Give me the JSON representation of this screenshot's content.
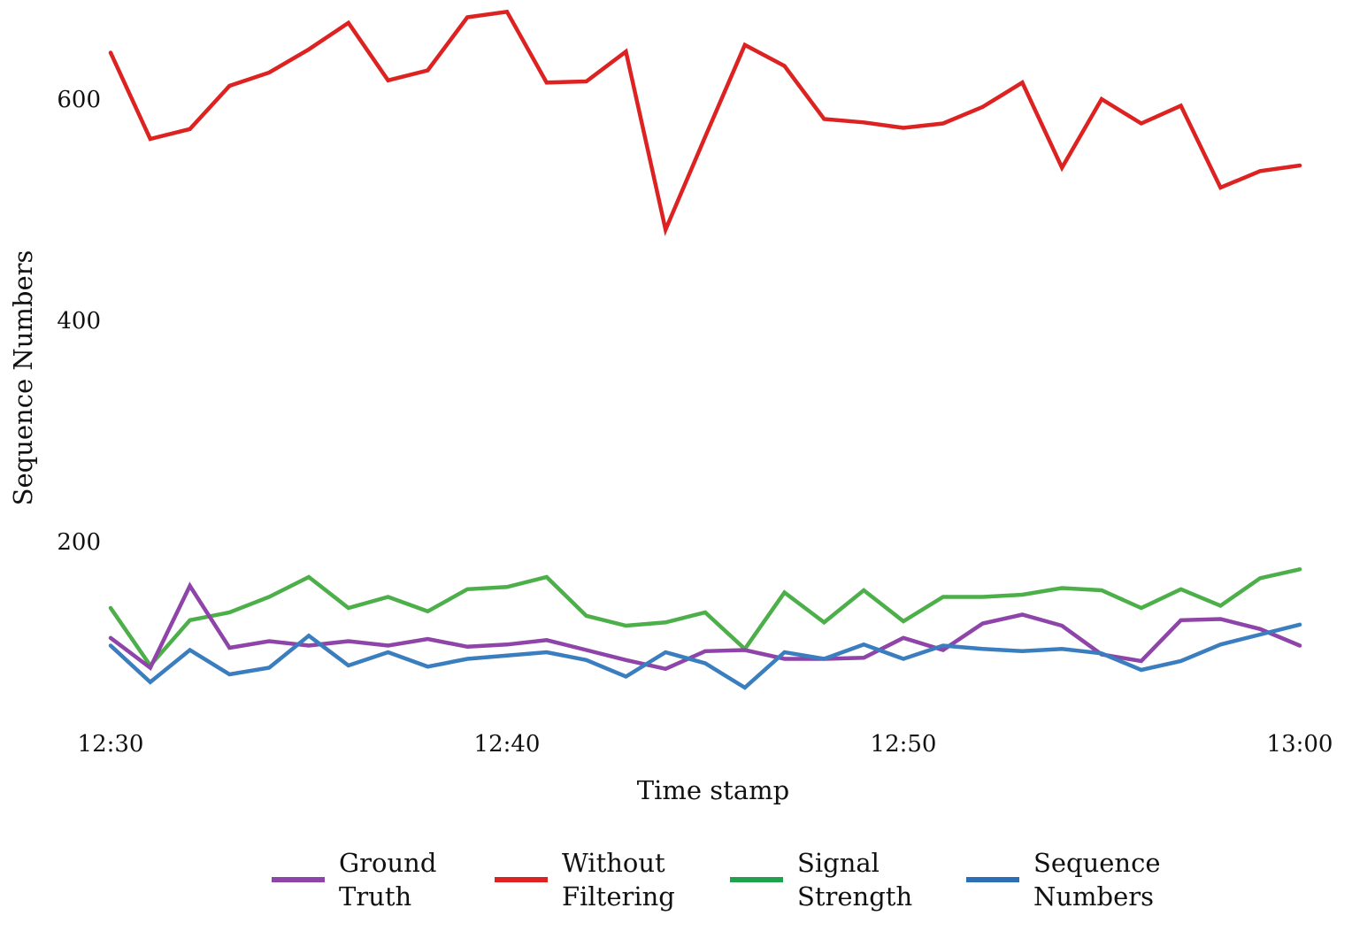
{
  "chart_data": {
    "type": "line",
    "xlabel": "Time stamp",
    "ylabel": "Sequence Numbers",
    "x_ticks": [
      "12:30",
      "12:40",
      "12:50",
      "13:00"
    ],
    "x_tick_positions": [
      0,
      10,
      20,
      30
    ],
    "y_ticks": [
      200,
      400,
      600
    ],
    "xlim": [
      0,
      30
    ],
    "ylim": [
      40,
      680
    ],
    "grid": false,
    "legend_position": "bottom",
    "x": [
      0,
      1,
      2,
      3,
      4,
      5,
      6,
      7,
      8,
      9,
      10,
      11,
      12,
      13,
      14,
      15,
      16,
      17,
      18,
      19,
      20,
      21,
      22,
      23,
      24,
      25,
      26,
      27,
      28,
      29,
      30
    ],
    "series": [
      {
        "name": "Ground Truth",
        "color": "#8e44a8",
        "values": [
          113,
          86,
          160,
          104,
          110,
          106,
          110,
          106,
          112,
          105,
          107,
          111,
          102,
          93,
          85,
          101,
          102,
          94,
          94,
          95,
          113,
          102,
          126,
          134,
          124,
          98,
          92,
          129,
          130,
          121,
          106
        ]
      },
      {
        "name": "Without Filtering",
        "color": "#dd2222",
        "values": [
          642,
          564,
          573,
          612,
          624,
          645,
          669,
          617,
          626,
          674,
          679,
          615,
          616,
          643,
          482,
          566,
          649,
          630,
          582,
          579,
          574,
          578,
          593,
          615,
          538,
          600,
          578,
          594,
          520,
          535,
          540
        ]
      },
      {
        "name": "Signal Strength",
        "color": "#4daf4a",
        "values": [
          140,
          88,
          129,
          136,
          150,
          168,
          140,
          150,
          137,
          157,
          159,
          168,
          133,
          124,
          127,
          136,
          103,
          154,
          127,
          156,
          128,
          150,
          150,
          152,
          158,
          156,
          140,
          157,
          142,
          167,
          175
        ]
      },
      {
        "name": "Sequence Numbers",
        "color": "#3a7ebf",
        "values": [
          106,
          73,
          102,
          80,
          86,
          115,
          88,
          100,
          87,
          94,
          97,
          100,
          93,
          78,
          100,
          90,
          68,
          100,
          94,
          107,
          94,
          106,
          103,
          101,
          103,
          99,
          84,
          92,
          107,
          116,
          125
        ]
      }
    ],
    "legend": [
      {
        "name": "Ground Truth",
        "lines": [
          "Ground",
          "Truth"
        ],
        "color": "#8e44a8"
      },
      {
        "name": "Without Filtering",
        "lines": [
          "Without",
          "Filtering"
        ],
        "color": "#dd2222"
      },
      {
        "name": "Signal Strength",
        "lines": [
          "Signal",
          "Strength"
        ],
        "color": "#1fa14d"
      },
      {
        "name": "Sequence Numbers",
        "lines": [
          "Sequence",
          "Numbers"
        ],
        "color": "#2b6fb6"
      }
    ]
  }
}
